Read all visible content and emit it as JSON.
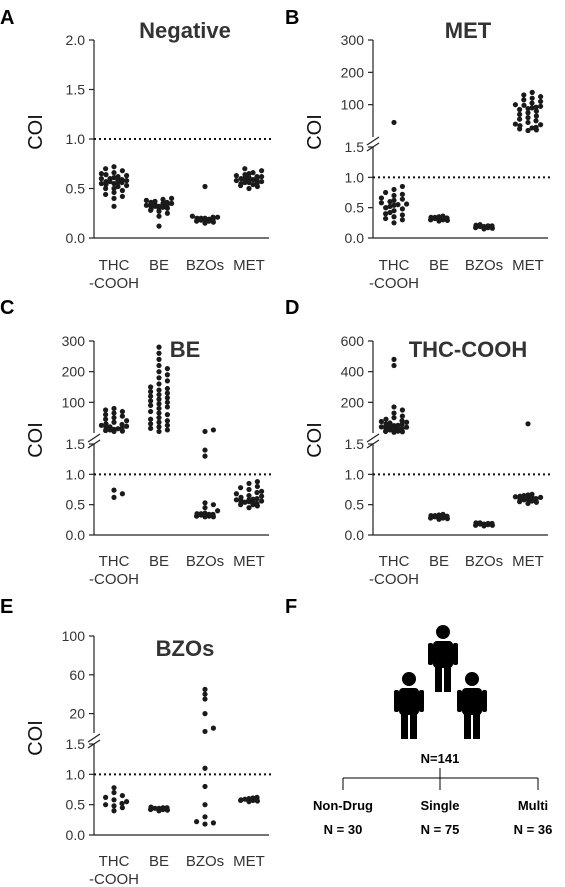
{
  "figure": {
    "panel_letters": [
      "A",
      "B",
      "C",
      "D",
      "E",
      "F"
    ],
    "tree": {
      "total": "N=141",
      "groups": [
        {
          "name": "Non-Drug",
          "n": "N = 30"
        },
        {
          "name": "Single",
          "n": "N = 75"
        },
        {
          "name": "Multi",
          "n": "N = 36"
        }
      ]
    },
    "icon": "three-people-icon"
  },
  "chart_data": [
    {
      "type": "scatter",
      "title": "Negative",
      "ylabel": "COI",
      "categories": [
        "THC\n-COOH",
        "BE",
        "BZOs",
        "MET"
      ],
      "ylim": [
        0,
        2.0
      ],
      "yticks": [
        "0.0",
        "0.5",
        "1.0",
        "1.5",
        "2.0"
      ],
      "cutoff": 1.0,
      "series": [
        {
          "category": "THC\n-COOH",
          "values": [
            0.32,
            0.4,
            0.42,
            0.44,
            0.46,
            0.48,
            0.5,
            0.5,
            0.52,
            0.53,
            0.54,
            0.55,
            0.55,
            0.56,
            0.56,
            0.57,
            0.57,
            0.58,
            0.58,
            0.59,
            0.6,
            0.6,
            0.61,
            0.62,
            0.63,
            0.64,
            0.65,
            0.66,
            0.68,
            0.7,
            0.72
          ]
        },
        {
          "category": "BE",
          "values": [
            0.12,
            0.22,
            0.25,
            0.27,
            0.28,
            0.29,
            0.3,
            0.3,
            0.31,
            0.31,
            0.32,
            0.32,
            0.32,
            0.33,
            0.33,
            0.34,
            0.34,
            0.35,
            0.35,
            0.36,
            0.36,
            0.37,
            0.38,
            0.39,
            0.4
          ]
        },
        {
          "category": "BZOs",
          "values": [
            0.15,
            0.16,
            0.17,
            0.17,
            0.18,
            0.18,
            0.18,
            0.19,
            0.19,
            0.19,
            0.2,
            0.2,
            0.2,
            0.21,
            0.21,
            0.22,
            0.52
          ]
        },
        {
          "category": "MET",
          "values": [
            0.5,
            0.52,
            0.53,
            0.54,
            0.55,
            0.55,
            0.56,
            0.56,
            0.57,
            0.57,
            0.58,
            0.58,
            0.59,
            0.59,
            0.6,
            0.6,
            0.61,
            0.61,
            0.62,
            0.62,
            0.63,
            0.64,
            0.65,
            0.66,
            0.68,
            0.7
          ]
        }
      ]
    },
    {
      "type": "scatter",
      "title": "MET",
      "ylabel": "COI",
      "categories": [
        "THC\n-COOH",
        "BE",
        "BZOs",
        "MET"
      ],
      "broken_axis": {
        "lower_ylim": [
          0,
          1.5
        ],
        "upper_ylim": [
          0,
          300
        ]
      },
      "yticks_lower": [
        "0.0",
        "0.5",
        "1.0",
        "1.5"
      ],
      "yticks_upper": [
        "100",
        "200",
        "300"
      ],
      "cutoff": 1.0,
      "series": [
        {
          "category": "THC\n-COOH",
          "values": [
            0.25,
            0.3,
            0.32,
            0.35,
            0.38,
            0.4,
            0.42,
            0.45,
            0.48,
            0.5,
            0.5,
            0.52,
            0.54,
            0.55,
            0.56,
            0.58,
            0.6,
            0.62,
            0.64,
            0.66,
            0.7,
            0.72,
            0.75,
            0.8,
            0.85,
            45
          ]
        },
        {
          "category": "BE",
          "values": [
            0.28,
            0.29,
            0.3,
            0.3,
            0.31,
            0.31,
            0.32,
            0.32,
            0.33,
            0.33,
            0.34,
            0.34,
            0.35,
            0.36
          ]
        },
        {
          "category": "BZOs",
          "values": [
            0.15,
            0.16,
            0.17,
            0.17,
            0.18,
            0.18,
            0.19,
            0.19,
            0.2,
            0.2,
            0.21,
            0.22
          ]
        },
        {
          "category": "MET",
          "values": [
            20,
            22,
            25,
            28,
            30,
            35,
            38,
            40,
            45,
            50,
            55,
            60,
            65,
            70,
            75,
            80,
            85,
            88,
            90,
            92,
            95,
            98,
            100,
            105,
            110,
            115,
            120,
            125,
            130,
            138
          ]
        }
      ]
    },
    {
      "type": "scatter",
      "title": "BE",
      "ylabel": "COI",
      "categories": [
        "THC\n-COOH",
        "BE",
        "BZOs",
        "MET"
      ],
      "broken_axis": {
        "lower_ylim": [
          0,
          1.5
        ],
        "upper_ylim": [
          0,
          300
        ]
      },
      "yticks_lower": [
        "0.0",
        "0.5",
        "1.0",
        "1.5"
      ],
      "yticks_upper": [
        "100",
        "200",
        "300"
      ],
      "cutoff": 1.0,
      "series": [
        {
          "category": "THC\n-COOH",
          "values": [
            0.62,
            0.68,
            0.74,
            5,
            6,
            8,
            10,
            12,
            14,
            15,
            18,
            20,
            22,
            25,
            28,
            30,
            35,
            40,
            45,
            50,
            55,
            60,
            65,
            70,
            75,
            80
          ]
        },
        {
          "category": "BE",
          "values": [
            5,
            10,
            15,
            20,
            25,
            30,
            35,
            40,
            45,
            50,
            60,
            65,
            70,
            80,
            85,
            90,
            95,
            100,
            105,
            110,
            115,
            120,
            125,
            130,
            135,
            140,
            145,
            150,
            160,
            170,
            180,
            190,
            200,
            210,
            220,
            240,
            260,
            280
          ]
        },
        {
          "category": "BZOs",
          "values": [
            0.3,
            0.3,
            0.31,
            0.31,
            0.32,
            0.32,
            0.33,
            0.33,
            0.34,
            0.34,
            0.35,
            0.35,
            0.36,
            0.4,
            0.45,
            0.5,
            0.53,
            1.3,
            1.4,
            5,
            10
          ]
        },
        {
          "category": "MET",
          "values": [
            0.45,
            0.48,
            0.5,
            0.5,
            0.52,
            0.53,
            0.54,
            0.55,
            0.55,
            0.56,
            0.57,
            0.58,
            0.58,
            0.59,
            0.6,
            0.62,
            0.64,
            0.65,
            0.68,
            0.7,
            0.72,
            0.75,
            0.78,
            0.8,
            0.85,
            0.88
          ]
        }
      ]
    },
    {
      "type": "scatter",
      "title": "THC-COOH",
      "ylabel": "COI",
      "categories": [
        "THC\n-COOH",
        "BE",
        "BZOs",
        "MET"
      ],
      "broken_axis": {
        "lower_ylim": [
          0,
          1.5
        ],
        "upper_ylim": [
          0,
          600
        ]
      },
      "yticks_lower": [
        "0.0",
        "0.5",
        "1.0",
        "1.5"
      ],
      "yticks_upper": [
        "200",
        "400",
        "600"
      ],
      "cutoff": 1.0,
      "series": [
        {
          "category": "THC\n-COOH",
          "values": [
            5,
            8,
            10,
            12,
            15,
            18,
            20,
            22,
            25,
            28,
            30,
            32,
            35,
            38,
            40,
            42,
            45,
            48,
            50,
            55,
            60,
            65,
            70,
            75,
            80,
            90,
            100,
            110,
            130,
            150,
            170,
            440,
            480
          ]
        },
        {
          "category": "BE",
          "values": [
            0.26,
            0.27,
            0.28,
            0.28,
            0.29,
            0.29,
            0.3,
            0.3,
            0.31,
            0.31,
            0.32,
            0.32,
            0.33,
            0.34
          ]
        },
        {
          "category": "BZOs",
          "values": [
            0.15,
            0.16,
            0.16,
            0.17,
            0.17,
            0.18,
            0.18,
            0.18,
            0.19,
            0.19,
            0.2,
            0.2
          ]
        },
        {
          "category": "MET",
          "values": [
            0.52,
            0.54,
            0.55,
            0.56,
            0.57,
            0.58,
            0.58,
            0.59,
            0.59,
            0.6,
            0.6,
            0.61,
            0.62,
            0.62,
            0.63,
            0.64,
            0.65,
            0.66,
            0.67,
            60
          ]
        }
      ]
    },
    {
      "type": "scatter",
      "title": "BZOs",
      "ylabel": "COI",
      "categories": [
        "THC\n-COOH",
        "BE",
        "BZOs",
        "MET"
      ],
      "broken_axis": {
        "lower_ylim": [
          0,
          1.5
        ],
        "upper_ylim": [
          0,
          100
        ]
      },
      "yticks_lower": [
        "0.0",
        "0.5",
        "1.0",
        "1.5"
      ],
      "yticks_upper": [
        "20",
        "60",
        "100"
      ],
      "cutoff": 1.0,
      "series": [
        {
          "category": "THC\n-COOH",
          "values": [
            0.4,
            0.45,
            0.48,
            0.5,
            0.52,
            0.55,
            0.58,
            0.62,
            0.65,
            0.7,
            0.78
          ]
        },
        {
          "category": "BE",
          "values": [
            0.4,
            0.41,
            0.42,
            0.42,
            0.43,
            0.43,
            0.44,
            0.44,
            0.45,
            0.45,
            0.46
          ]
        },
        {
          "category": "BZOs",
          "values": [
            0.18,
            0.2,
            0.22,
            0.3,
            0.5,
            0.8,
            1.1,
            1.6,
            5,
            20,
            35,
            40,
            45
          ]
        },
        {
          "category": "MET",
          "values": [
            0.55,
            0.56,
            0.57,
            0.57,
            0.58,
            0.58,
            0.59,
            0.6,
            0.61,
            0.62
          ]
        }
      ]
    }
  ]
}
